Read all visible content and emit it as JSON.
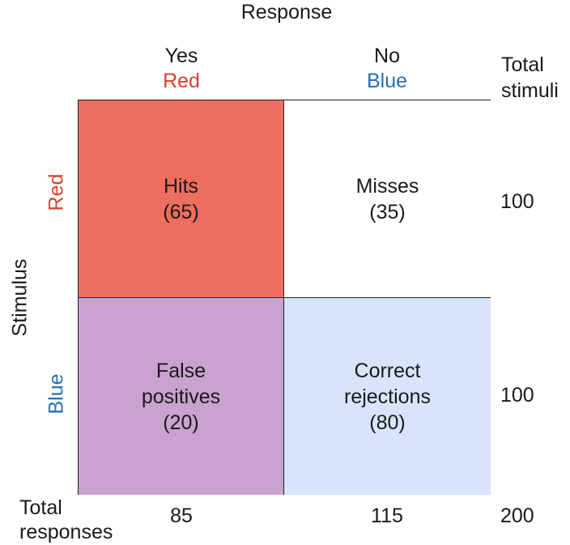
{
  "header": {
    "response_label": "Response"
  },
  "columns": [
    {
      "answer": "Yes",
      "color_label": "Red",
      "total": "85"
    },
    {
      "answer": "No",
      "color_label": "Blue",
      "total": "115"
    }
  ],
  "total_stimuli_label": [
    "Total",
    "stimuli"
  ],
  "stimulus_label": "Stimulus",
  "rows": [
    {
      "color_label": "Red",
      "total": "100"
    },
    {
      "color_label": "Blue",
      "total": "100"
    }
  ],
  "cells": {
    "hits": {
      "lines": [
        "Hits",
        "(65)"
      ]
    },
    "misses": {
      "lines": [
        "Misses",
        "(35)"
      ]
    },
    "false_positives": {
      "lines": [
        "False",
        "positives",
        "(20)"
      ]
    },
    "correct_rejections": {
      "lines": [
        "Correct",
        "rejections",
        "(80)"
      ]
    }
  },
  "total_responses_label": [
    "Total",
    "responses"
  ],
  "grand_total": "200",
  "colors": {
    "hits": "#ee6e60",
    "false_positives": "#c9a2cf",
    "correct_rejections": "#d8e4fc",
    "red_text": "#d9402e",
    "blue_text": "#2a6fad"
  }
}
